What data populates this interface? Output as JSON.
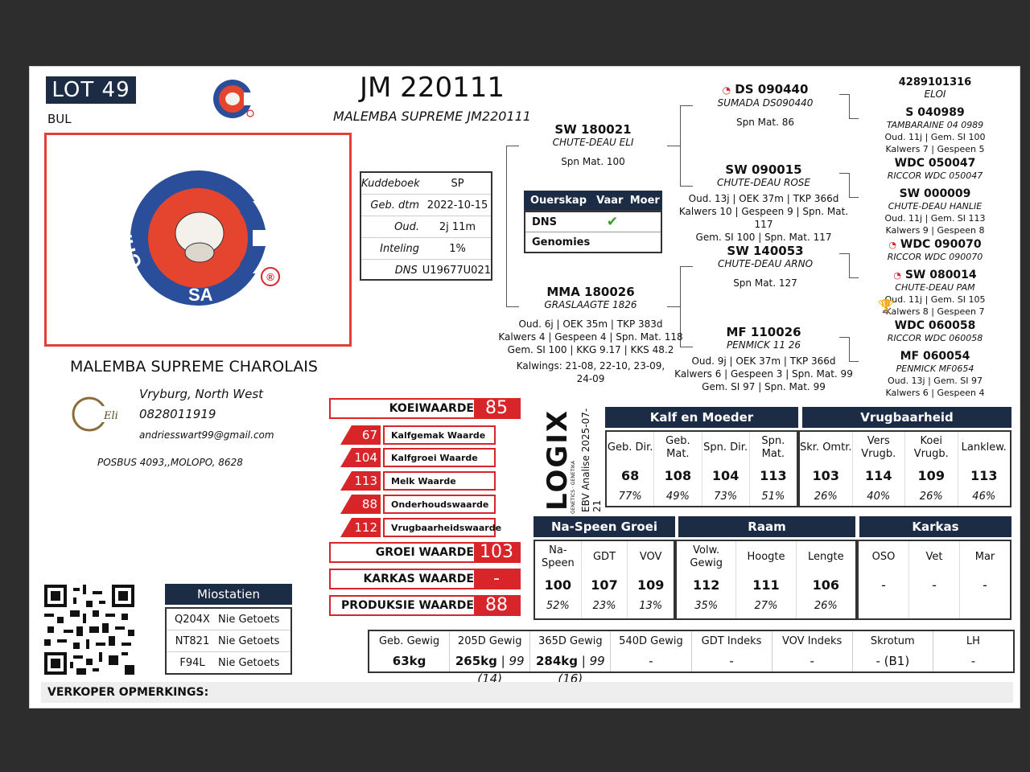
{
  "lot": {
    "label": "LOT 49",
    "type": "BUL"
  },
  "animal": {
    "id": "JM 220111",
    "name": "MALEMBA SUPREME JM220111"
  },
  "breeder": {
    "name": "MALEMBA SUPREME CHAROLAIS",
    "location": "Vryburg, North West",
    "phone": "0828011919",
    "email": "andriesswart99@gmail.com",
    "address": "POSBUS  4093,,MOLOPO,  8628",
    "badge_text": "Elite"
  },
  "logo": {
    "text_top": "CHAROLAIS",
    "text_bottom": "SA",
    "mark": "®"
  },
  "info": [
    {
      "k": "Kuddeboek",
      "v": "SP"
    },
    {
      "k": "Geb. dtm",
      "v": "2022-10-15"
    },
    {
      "k": "Oud.",
      "v": "2j 11m"
    },
    {
      "k": "Inteling",
      "v": "1%"
    },
    {
      "k": "DNS",
      "v": "U19677U021"
    }
  ],
  "ouerskap": {
    "headers": [
      "Ouerskap",
      "Vaar",
      "Moer"
    ],
    "rows": [
      {
        "label": "DNS",
        "vaar": "✔",
        "moer": ""
      },
      {
        "label": "Genomies",
        "vaar": "",
        "moer": ""
      }
    ]
  },
  "pedigree": {
    "sire": {
      "id": "SW 180021",
      "name": "CHUTE-DEAU ELI",
      "info": "Spn Mat. 100"
    },
    "dam": {
      "id": "MMA 180026",
      "name": "GRASLAAGTE 1826",
      "info1": "Oud. 6j | OEK 35m | TKP 383d",
      "info2": "Kalwers 4 | Gespeen 4 | Spn. Mat. 118",
      "info3": "Gem. SI 100 | KKG 9.17 | KKS 48.2",
      "info4": "Kalwings: 21-08, 22-10, 23-09,",
      "info5": "24-09"
    },
    "ss": {
      "id": "DS 090440",
      "name": "SUMADA DS090440",
      "info": "Spn Mat. 86"
    },
    "sd": {
      "id": "SW 090015",
      "name": "CHUTE-DEAU ROSE",
      "info1": "Oud. 13j | OEK 37m | TKP 366d",
      "info2": "Kalwers 10 | Gespeen 9 | Spn. Mat. 117",
      "info3": "Gem. SI 100 | Spn. Mat. 117"
    },
    "ds": {
      "id": "SW 140053",
      "name": "CHUTE-DEAU ARNO",
      "info": "Spn Mat. 127"
    },
    "dd": {
      "id": "MF 110026",
      "name": "PENMICK 11 26",
      "info1": "Oud. 9j | OEK 37m | TKP 366d",
      "info2": "Kalwers 6 | Gespeen 3 | Spn. Mat. 99",
      "info3": "Gem. SI 97 | Spn. Mat. 99"
    },
    "sss": {
      "id": "4289101316",
      "name": "ELOI"
    },
    "ssd": {
      "id": "S 040989",
      "name": "TAMBARAINE 04 0989",
      "info1": "Oud. 11j | Gem. SI 100",
      "info2": "Kalwers 7 | Gespeen 5"
    },
    "sds": {
      "id": "WDC 050047",
      "name": "RICCOR WDC 050047"
    },
    "sdd": {
      "id": "SW 000009",
      "name": "CHUTE-DEAU HANLIE",
      "info1": "Oud. 11j | Gem. SI 113",
      "info2": "Kalwers 9 | Gespeen 8"
    },
    "dss": {
      "id": "WDC 090070",
      "name": "RICCOR WDC 090070"
    },
    "dsd": {
      "id": "SW 080014",
      "name": "CHUTE-DEAU PAM",
      "info1": "Oud. 11j | Gem. SI 105",
      "info2": "Kalwers 8 | Gespeen 7"
    },
    "dds": {
      "id": "WDC 060058",
      "name": "RICCOR WDC 060058"
    },
    "ddd": {
      "id": "MF 060054",
      "name": "PENMICK MF0654",
      "info1": "Oud. 13j | Gem. SI 97",
      "info2": "Kalwers 6 | Gespeen 4"
    }
  },
  "values": {
    "koei": {
      "label": "KOEIWAARDE",
      "value": "85"
    },
    "sub": [
      {
        "value": "67",
        "label": "Kalfgemak Waarde"
      },
      {
        "value": "104",
        "label": "Kalfgroei Waarde"
      },
      {
        "value": "113",
        "label": "Melk Waarde"
      },
      {
        "value": "88",
        "label": "Onderhoudswaarde"
      },
      {
        "value": "112",
        "label": "Vrugbaarheidswaarde"
      }
    ],
    "groei": {
      "label": "GROEI WAARDE",
      "value": "103"
    },
    "karkas": {
      "label": "KARKAS WAARDE",
      "value": "-"
    },
    "produksie": {
      "label": "PRODUKSIE WAARDE",
      "value": "88"
    }
  },
  "logix": {
    "brand": "LOGIX",
    "sub": "GENETICS · GENETIKA",
    "analysis": "EBV Analise 2025-07-21"
  },
  "tables": {
    "kalf_moeder": {
      "title": "Kalf en Moeder",
      "cols": [
        {
          "h": "Geb. Dir.",
          "v": "68",
          "p": "77%"
        },
        {
          "h": "Geb. Mat.",
          "v": "108",
          "p": "49%"
        },
        {
          "h": "Spn. Dir.",
          "v": "104",
          "p": "73%"
        },
        {
          "h": "Spn. Mat.",
          "v": "113",
          "p": "51%"
        }
      ]
    },
    "vrugbaarheid": {
      "title": "Vrugbaarheid",
      "cols": [
        {
          "h": "Skr. Omtr.",
          "v": "103",
          "p": "26%"
        },
        {
          "h": "Vers Vrugb.",
          "v": "114",
          "p": "40%"
        },
        {
          "h": "Koei Vrugb.",
          "v": "109",
          "p": "26%"
        },
        {
          "h": "Lanklew.",
          "v": "113",
          "p": "46%"
        }
      ]
    },
    "naspeen": {
      "title": "Na-Speen Groei",
      "cols": [
        {
          "h": "Na-Speen",
          "v": "100",
          "p": "52%"
        },
        {
          "h": "GDT",
          "v": "107",
          "p": "23%"
        },
        {
          "h": "VOV",
          "v": "109",
          "p": "13%"
        }
      ]
    },
    "raam": {
      "title": "Raam",
      "cols": [
        {
          "h": "Volw. Gewig",
          "v": "112",
          "p": "35%"
        },
        {
          "h": "Hoogte",
          "v": "111",
          "p": "27%"
        },
        {
          "h": "Lengte",
          "v": "106",
          "p": "26%"
        }
      ]
    },
    "karkas": {
      "title": "Karkas",
      "cols": [
        {
          "h": "OSO",
          "v": "-",
          "p": ""
        },
        {
          "h": "Vet",
          "v": "-",
          "p": ""
        },
        {
          "h": "Mar",
          "v": "-",
          "p": ""
        }
      ]
    }
  },
  "weights": [
    {
      "h": "Geb. Gewig",
      "v": "63kg",
      "x": ""
    },
    {
      "h": "205D Gewig",
      "v": "265kg",
      "x": " | 99 (14)"
    },
    {
      "h": "365D Gewig",
      "v": "284kg",
      "x": " | 99 (16)"
    },
    {
      "h": "540D Gewig",
      "v": "-",
      "x": ""
    },
    {
      "h": "GDT Indeks",
      "v": "-",
      "x": ""
    },
    {
      "h": "VOV Indeks",
      "v": "-",
      "x": ""
    },
    {
      "h": "Skrotum",
      "v": "- (B1)",
      "x": ""
    },
    {
      "h": "LH",
      "v": "-",
      "x": ""
    }
  ],
  "miostatien": {
    "title": "Miostatien",
    "rows": [
      {
        "code": "Q204X",
        "status": "Nie Getoets"
      },
      {
        "code": "NT821",
        "status": "Nie Getoets"
      },
      {
        "code": "F94L",
        "status": "Nie Getoets"
      }
    ]
  },
  "remarks": {
    "label": "VERKOPER OPMERKINGS:"
  },
  "colors": {
    "navy": "#1c2c45",
    "red": "#d8252a",
    "logo_red": "#e5452f",
    "logo_blue": "#2b4e9b"
  }
}
